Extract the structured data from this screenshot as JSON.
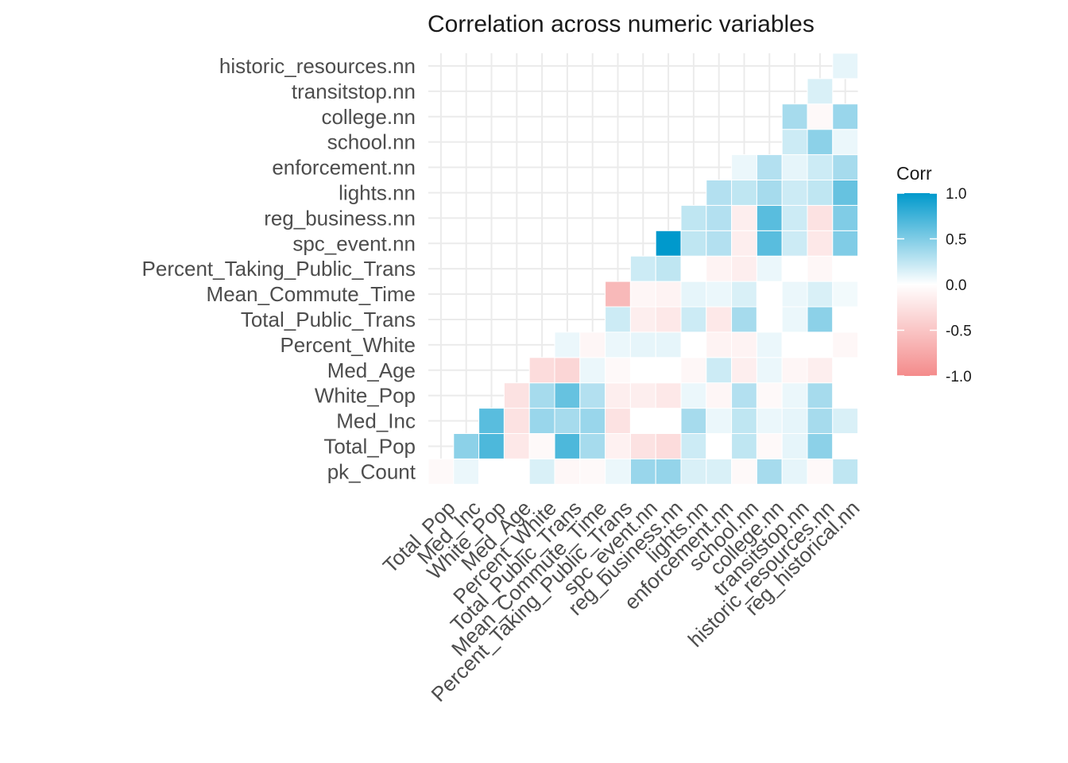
{
  "chart_data": {
    "type": "heatmap",
    "title": "Correlation across numeric variables",
    "xlabel": "",
    "ylabel": "",
    "x_categories": [
      "Total_Pop",
      "Med_Inc",
      "White_Pop",
      "Med_Age",
      "Percent_White",
      "Total_Public_Trans",
      "Mean_Commute_Time",
      "Percent_Taking_Public_Trans",
      "spc_event.nn",
      "reg_business.nn",
      "lights.nn",
      "enforcement.nn",
      "school.nn",
      "college.nn",
      "transitstop.nn",
      "historic_resources.nn",
      "reg_historical.nn"
    ],
    "y_categories": [
      "pk_Count",
      "Total_Pop",
      "Med_Inc",
      "White_Pop",
      "Med_Age",
      "Percent_White",
      "Total_Public_Trans",
      "Mean_Commute_Time",
      "Percent_Taking_Public_Trans",
      "spc_event.nn",
      "reg_business.nn",
      "lights.nn",
      "enforcement.nn",
      "school.nn",
      "college.nn",
      "transitstop.nn",
      "historic_resources.nn"
    ],
    "values": [
      [
        -0.05,
        0.08,
        0.0,
        0.0,
        0.15,
        -0.07,
        -0.05,
        0.08,
        0.4,
        0.42,
        0.15,
        0.15,
        -0.05,
        0.35,
        0.1,
        -0.05,
        0.25
      ],
      [
        null,
        0.45,
        0.7,
        -0.2,
        -0.05,
        0.7,
        0.35,
        -0.12,
        -0.25,
        -0.3,
        0.2,
        0.0,
        0.25,
        -0.05,
        0.1,
        0.45,
        0.0
      ],
      [
        null,
        null,
        0.65,
        -0.25,
        0.4,
        0.35,
        0.4,
        -0.25,
        0.0,
        0.0,
        0.35,
        0.08,
        0.25,
        0.08,
        0.1,
        0.35,
        0.15
      ],
      [
        null,
        null,
        null,
        -0.25,
        0.35,
        0.6,
        0.3,
        -0.15,
        -0.15,
        -0.2,
        0.08,
        -0.08,
        0.3,
        -0.05,
        0.08,
        0.35,
        0.0
      ],
      [
        null,
        null,
        null,
        null,
        -0.3,
        -0.35,
        0.08,
        -0.05,
        0.0,
        0.0,
        -0.07,
        0.2,
        -0.15,
        0.08,
        -0.08,
        -0.15,
        0.0
      ],
      [
        null,
        null,
        null,
        null,
        null,
        0.08,
        -0.08,
        0.08,
        0.1,
        0.1,
        0.0,
        -0.1,
        -0.1,
        0.08,
        0.0,
        0.0,
        -0.07
      ],
      [
        null,
        null,
        null,
        null,
        null,
        null,
        null,
        0.2,
        -0.15,
        -0.2,
        0.2,
        -0.2,
        0.35,
        0.0,
        0.08,
        0.45,
        0.0
      ],
      [
        null,
        null,
        null,
        null,
        null,
        null,
        null,
        -0.6,
        -0.08,
        -0.1,
        0.1,
        0.08,
        0.15,
        0.0,
        0.08,
        0.15,
        0.05
      ],
      [
        null,
        null,
        null,
        null,
        null,
        null,
        null,
        null,
        0.2,
        0.25,
        0.0,
        -0.1,
        -0.15,
        0.08,
        0.0,
        -0.07,
        0.0
      ],
      [
        null,
        null,
        null,
        null,
        null,
        null,
        null,
        null,
        null,
        1.0,
        0.25,
        0.3,
        -0.15,
        0.65,
        0.2,
        -0.2,
        0.5
      ],
      [
        null,
        null,
        null,
        null,
        null,
        null,
        null,
        null,
        null,
        null,
        0.25,
        0.3,
        -0.15,
        0.65,
        0.2,
        -0.25,
        0.5
      ],
      [
        null,
        null,
        null,
        null,
        null,
        null,
        null,
        null,
        null,
        null,
        null,
        0.3,
        0.25,
        0.35,
        0.2,
        0.25,
        0.6
      ],
      [
        null,
        null,
        null,
        null,
        null,
        null,
        null,
        null,
        null,
        null,
        null,
        null,
        0.08,
        0.3,
        0.1,
        0.2,
        0.35
      ],
      [
        null,
        null,
        null,
        null,
        null,
        null,
        null,
        null,
        null,
        null,
        null,
        null,
        null,
        null,
        0.2,
        0.45,
        0.08
      ],
      [
        null,
        null,
        null,
        null,
        null,
        null,
        null,
        null,
        null,
        null,
        null,
        null,
        null,
        null,
        0.35,
        -0.05,
        0.4
      ],
      [
        null,
        null,
        null,
        null,
        null,
        null,
        null,
        null,
        null,
        null,
        null,
        null,
        null,
        null,
        null,
        0.15,
        null
      ],
      [
        null,
        null,
        null,
        null,
        null,
        null,
        null,
        null,
        null,
        null,
        null,
        null,
        null,
        null,
        null,
        null,
        0.1
      ]
    ],
    "legend": {
      "title": "Corr",
      "ticks": [
        "1.0",
        "0.5",
        "0.0",
        "-0.5",
        "-1.0"
      ],
      "tick_values": [
        1.0,
        0.5,
        0.0,
        -0.5,
        -1.0
      ],
      "placement": "right"
    },
    "colors": {
      "high": "#0099cc",
      "mid": "#ffffff",
      "low": "#f48b8b",
      "grid": "#ebebeb"
    },
    "grid": true
  }
}
